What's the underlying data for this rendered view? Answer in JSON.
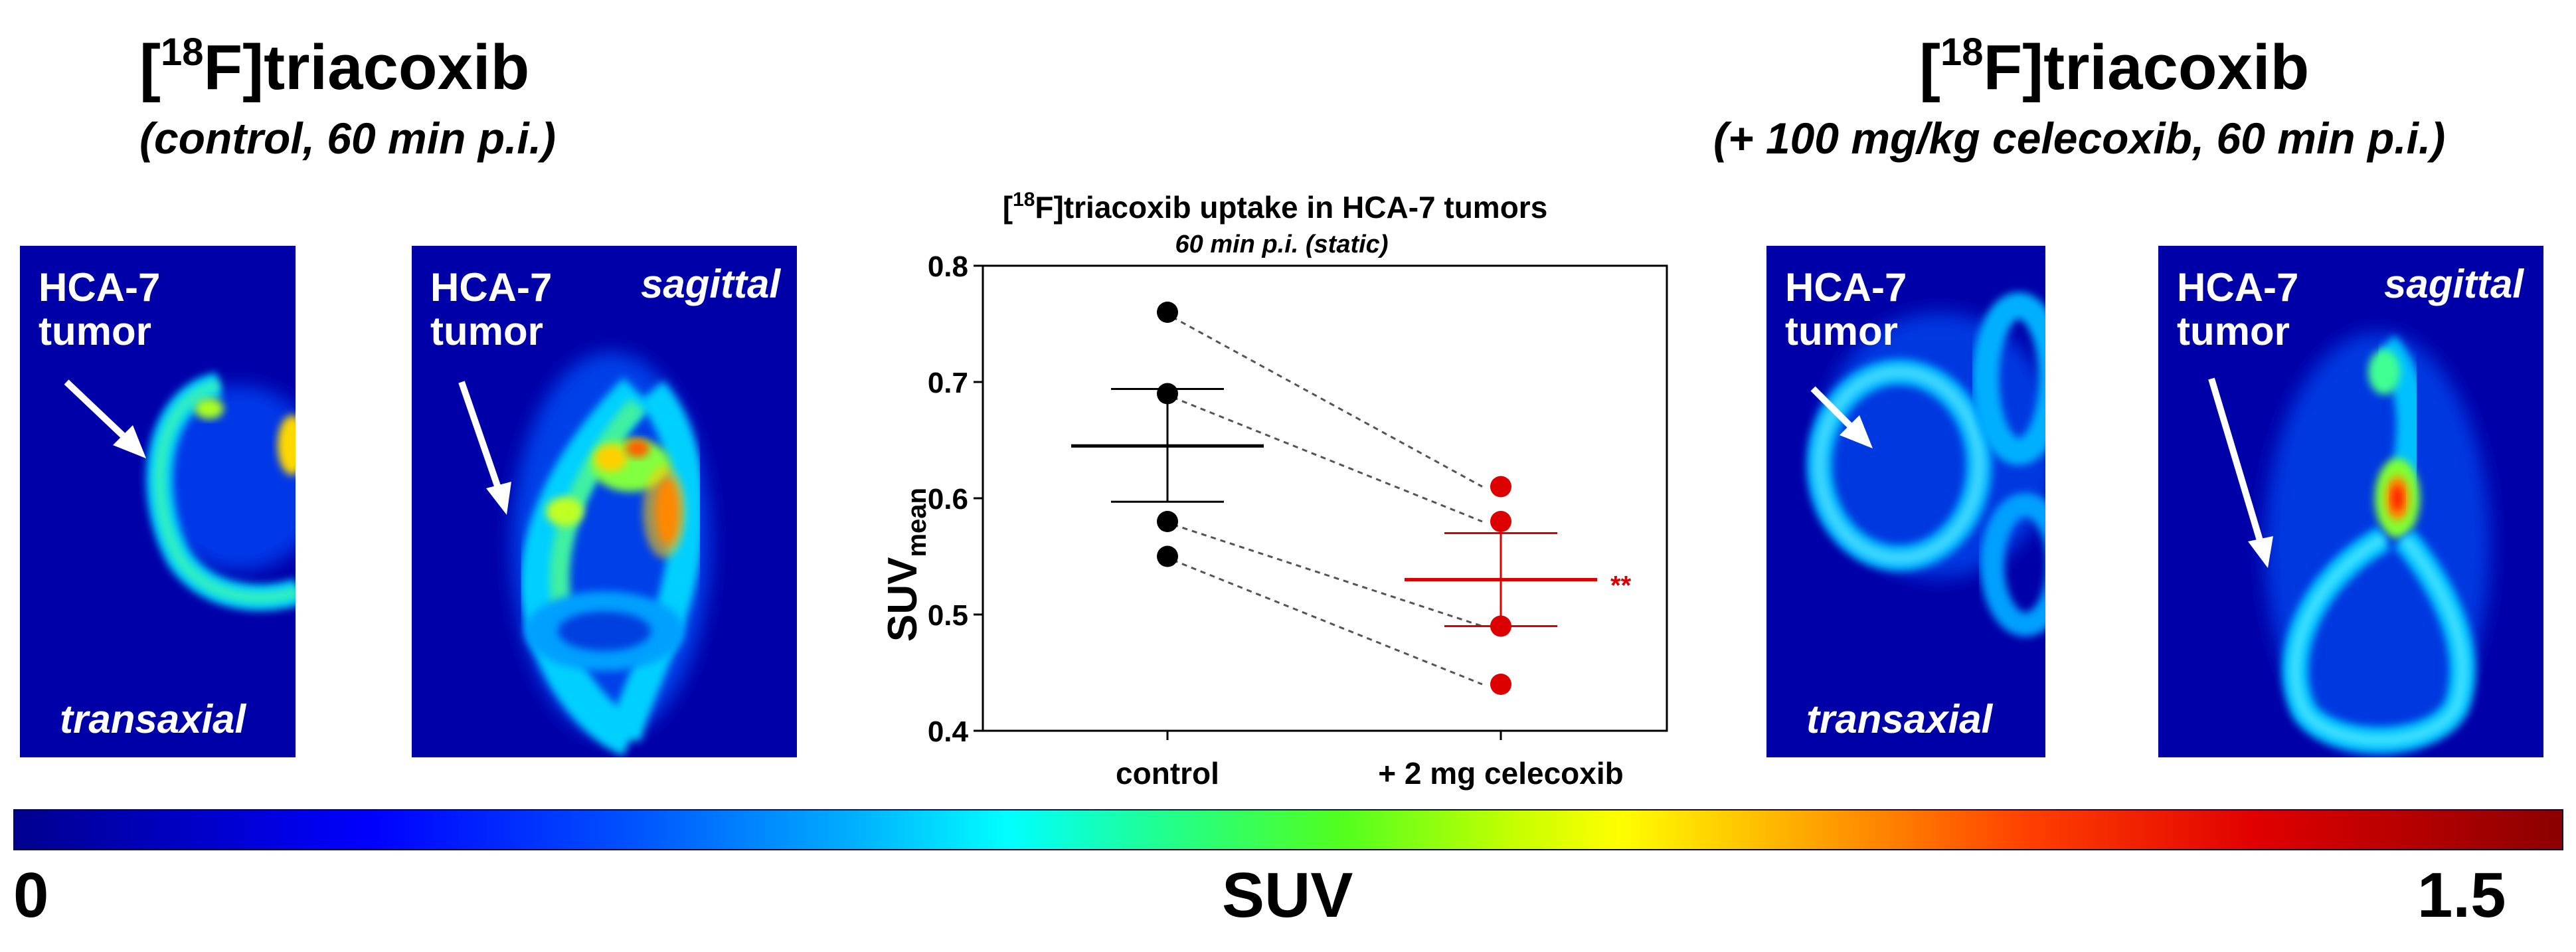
{
  "left_panel": {
    "title_sup": "18",
    "title_rest": "F]triacoxib",
    "subtitle": "(control, 60 min p.i.)",
    "transaxial_label_top": "HCA-7",
    "transaxial_label_bottom": "tumor",
    "transaxial_view": "transaxial",
    "sagittal_label_top": "HCA-7",
    "sagittal_label_bottom": "tumor",
    "sagittal_view": "sagittal"
  },
  "right_panel": {
    "title_sup": "18",
    "title_rest": "F]triacoxib",
    "subtitle": "(+ 100 mg/kg celecoxib, 60 min p.i.)",
    "transaxial_label_top": "HCA-7",
    "transaxial_label_bottom": "tumor",
    "transaxial_view": "transaxial",
    "sagittal_label_top": "HCA-7",
    "sagittal_label_bottom": "tumor",
    "sagittal_view": "sagittal"
  },
  "colorbar": {
    "min_label": "0",
    "max_label": "1.5",
    "center_label": "SUV"
  },
  "chart_data": {
    "type": "scatter",
    "title_sup": "18",
    "title_rest": "F]triacoxib uptake in HCA-7 tumors",
    "subtitle": "60 min p.i. (static)",
    "ylabel_main": "SUV",
    "ylabel_sub": "mean",
    "xlabel": "",
    "categories": [
      "control",
      "+ 2 mg celecoxib"
    ],
    "ylim": [
      0.4,
      0.8
    ],
    "yticks": [
      "0.4",
      "0.5",
      "0.6",
      "0.7",
      "0.8"
    ],
    "series": [
      {
        "name": "control",
        "color": "#000000",
        "values": [
          0.76,
          0.69,
          0.58,
          0.55
        ],
        "mean": 0.645,
        "sem_upper": 0.694,
        "sem_lower": 0.597
      },
      {
        "name": "+ 2 mg celecoxib",
        "color": "#dd0000",
        "values": [
          0.61,
          0.58,
          0.49,
          0.44
        ],
        "mean": 0.53,
        "sem_upper": 0.57,
        "sem_lower": 0.49
      }
    ],
    "paired_lines": [
      {
        "from": 0.76,
        "to": 0.61
      },
      {
        "from": 0.69,
        "to": 0.58
      },
      {
        "from": 0.58,
        "to": 0.49
      },
      {
        "from": 0.55,
        "to": 0.44
      }
    ],
    "significance": "**"
  }
}
